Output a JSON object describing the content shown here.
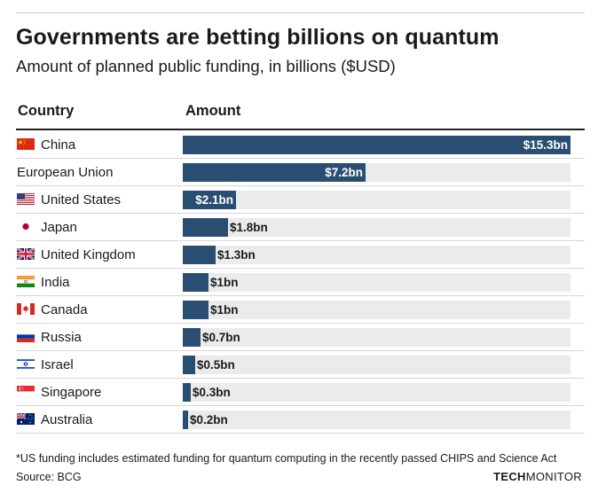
{
  "title": "Governments are betting billions on quantum",
  "subtitle": "Amount of planned public funding, in billions ($USD)",
  "columns": {
    "country": "Country",
    "amount": "Amount"
  },
  "colors": {
    "bar": "#2a4e72",
    "track": "#ebebeb"
  },
  "chart_data": {
    "type": "bar",
    "orientation": "horizontal",
    "title": "Governments are betting billions on quantum",
    "subtitle": "Amount of planned public funding, in billions ($USD)",
    "xlim": [
      0,
      15.3
    ],
    "categories": [
      "China",
      "European Union",
      "United States",
      "Japan",
      "United Kingdom",
      "India",
      "Canada",
      "Russia",
      "Israel",
      "Singapore",
      "Australia"
    ],
    "values": [
      15.3,
      7.2,
      2.1,
      1.8,
      1.3,
      1.0,
      1.0,
      0.7,
      0.5,
      0.3,
      0.2
    ],
    "labels": [
      "$15.3bn",
      "$7.2bn",
      "$2.1bn",
      "$1.8bn",
      "$1.3bn",
      "$1bn",
      "$1bn",
      "$0.7bn",
      "$0.5bn",
      "$0.3bn",
      "$0.2bn"
    ],
    "flags": [
      "china-flag-icon",
      "",
      "us-flag-icon",
      "japan-flag-icon",
      "uk-flag-icon",
      "india-flag-icon",
      "canada-flag-icon",
      "russia-flag-icon",
      "israel-flag-icon",
      "singapore-flag-icon",
      "australia-flag-icon"
    ]
  },
  "footnote": "*US funding includes estimated funding for quantum computing in the recently passed CHIPS and Science Act",
  "source": "Source: BCG",
  "logo": {
    "part1": "TECH",
    "part2": "MONITOR"
  }
}
